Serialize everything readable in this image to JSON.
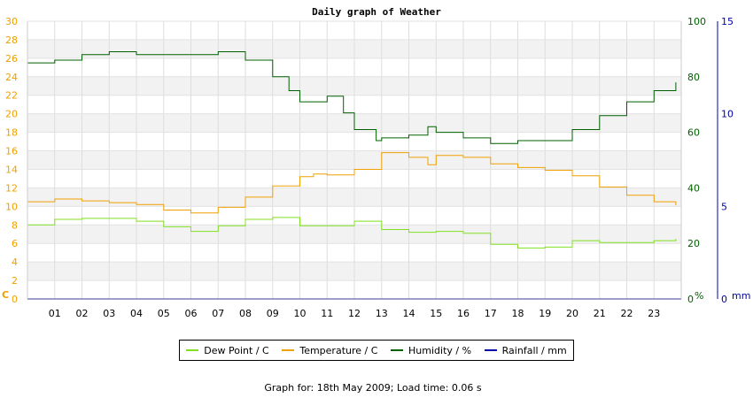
{
  "chart_data": {
    "type": "line",
    "title": "Daily graph of Weather",
    "x_ticks": [
      "01",
      "02",
      "03",
      "04",
      "05",
      "06",
      "07",
      "08",
      "09",
      "10",
      "11",
      "12",
      "13",
      "14",
      "15",
      "16",
      "17",
      "18",
      "19",
      "20",
      "21",
      "22",
      "23"
    ],
    "x_range": [
      0,
      24
    ],
    "y_left": {
      "unit": "C",
      "ticks": [
        "0",
        "2",
        "4",
        "6",
        "8",
        "10",
        "12",
        "14",
        "16",
        "18",
        "20",
        "22",
        "24",
        "26",
        "28",
        "30"
      ],
      "range": [
        0,
        30
      ],
      "color": "#f0a000"
    },
    "y_right_humidity": {
      "unit": "%",
      "ticks": [
        "0",
        "20",
        "40",
        "60",
        "80",
        "100"
      ],
      "range": [
        0,
        100
      ],
      "color": "#006000"
    },
    "y_right_rain": {
      "unit": "mm",
      "ticks": [
        "0",
        "5",
        "10",
        "15"
      ],
      "range": [
        0,
        15
      ],
      "color": "#0000aa"
    },
    "grid": true,
    "legend_position": "bottom",
    "series": [
      {
        "name": "Dew Point / C",
        "color": "#80e020",
        "axis": "temp",
        "x": [
          0,
          1,
          2,
          3,
          4,
          5,
          6,
          7,
          8,
          9,
          10,
          11,
          12,
          13,
          14,
          15,
          16,
          17,
          18,
          19,
          20,
          21,
          22,
          23,
          23.8
        ],
        "y": [
          8.0,
          8.6,
          8.7,
          8.7,
          8.4,
          7.8,
          7.3,
          7.9,
          8.6,
          8.8,
          7.9,
          7.9,
          8.4,
          7.5,
          7.2,
          7.3,
          7.1,
          5.9,
          5.5,
          5.6,
          6.3,
          6.1,
          6.1,
          6.3,
          6.5
        ]
      },
      {
        "name": "Temperature / C",
        "color": "#f0a000",
        "axis": "temp",
        "x": [
          0,
          1,
          2,
          3,
          4,
          5,
          6,
          7,
          8,
          9,
          10,
          10.5,
          11,
          12,
          13,
          14,
          14.7,
          15,
          16,
          17,
          18,
          19,
          20,
          21,
          22,
          23,
          23.8
        ],
        "y": [
          10.5,
          10.8,
          10.6,
          10.4,
          10.2,
          9.6,
          9.3,
          9.9,
          11.0,
          12.2,
          13.2,
          13.5,
          13.4,
          14.0,
          15.8,
          15.3,
          14.5,
          15.5,
          15.3,
          14.6,
          14.2,
          13.9,
          13.3,
          12.1,
          11.2,
          10.5,
          10.1
        ]
      },
      {
        "name": "Humidity / %",
        "color": "#006000",
        "axis": "humidity",
        "x": [
          0,
          1,
          2,
          3,
          4,
          5,
          6,
          7,
          8,
          9,
          9.6,
          10,
          11,
          11.6,
          12,
          12.8,
          13,
          14,
          14.7,
          15,
          16,
          17,
          18,
          19,
          20,
          21,
          22,
          23,
          23.8
        ],
        "y": [
          85,
          86,
          88,
          89,
          88,
          88,
          88,
          89,
          86,
          80,
          75,
          71,
          73,
          67,
          61,
          57,
          58,
          59,
          62,
          60,
          58,
          56,
          57,
          57,
          61,
          66,
          71,
          75,
          78
        ]
      },
      {
        "name": "Rainfall / mm",
        "color": "#0000aa",
        "axis": "rain",
        "x": [
          0,
          24
        ],
        "y": [
          0,
          0
        ]
      }
    ]
  },
  "footer": "Graph for: 18th May 2009; Load time: 0.06 s"
}
